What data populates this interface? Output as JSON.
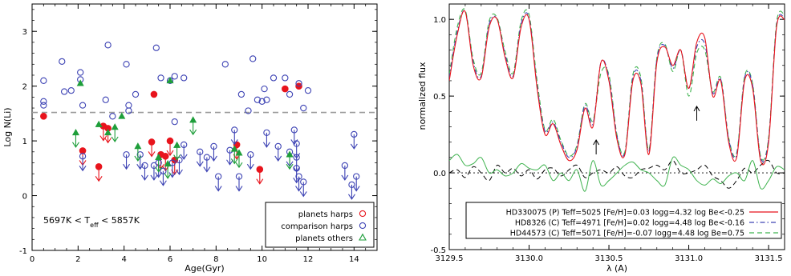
{
  "chart_data": [
    {
      "type": "scatter",
      "xlabel": "Age(Gyr)",
      "ylabel": "Log N(Li)",
      "xlim": [
        0,
        15
      ],
      "ylim": [
        -1,
        3.5
      ],
      "x_ticks": [
        0,
        2,
        4,
        6,
        8,
        10,
        12,
        14
      ],
      "y_ticks": [
        -1,
        0,
        1,
        2,
        3
      ],
      "reference_line_y": 1.52,
      "annotation": {
        "pre": "5697K < T",
        "sub": "eff",
        "post": " < 5857K"
      },
      "legend_position": "bottom-right",
      "colors": {
        "harps_planets": "#e8141c",
        "harps_comparison": "#3d43b4",
        "others_planets": "#1e9e3a",
        "ref_line": "#9a9a9a"
      },
      "series": [
        {
          "name": "planets harps",
          "marker": "filled-circle",
          "detections": [
            {
              "x": 0.5,
              "y": 1.45
            },
            {
              "x": 5.3,
              "y": 1.85
            },
            {
              "x": 11.0,
              "y": 1.95
            },
            {
              "x": 11.6,
              "y": 2.0
            }
          ],
          "upper_limits": [
            {
              "x": 2.2,
              "y": 0.82
            },
            {
              "x": 2.9,
              "y": 0.53
            },
            {
              "x": 3.1,
              "y": 1.27
            },
            {
              "x": 3.3,
              "y": 1.23
            },
            {
              "x": 5.2,
              "y": 0.98
            },
            {
              "x": 5.6,
              "y": 0.75
            },
            {
              "x": 5.8,
              "y": 0.72
            },
            {
              "x": 6.0,
              "y": 1.0
            },
            {
              "x": 6.2,
              "y": 0.65
            },
            {
              "x": 8.9,
              "y": 0.93
            },
            {
              "x": 9.9,
              "y": 0.48
            }
          ]
        },
        {
          "name": "comparison harps",
          "marker": "open-circle",
          "detections": [
            {
              "x": 0.5,
              "y": 2.1
            },
            {
              "x": 0.5,
              "y": 1.72
            },
            {
              "x": 0.5,
              "y": 1.65
            },
            {
              "x": 1.3,
              "y": 2.45
            },
            {
              "x": 1.4,
              "y": 1.9
            },
            {
              "x": 1.7,
              "y": 1.92
            },
            {
              "x": 2.1,
              "y": 2.25
            },
            {
              "x": 2.1,
              "y": 2.12
            },
            {
              "x": 2.2,
              "y": 1.65
            },
            {
              "x": 3.3,
              "y": 2.75
            },
            {
              "x": 3.2,
              "y": 1.75
            },
            {
              "x": 3.5,
              "y": 1.45
            },
            {
              "x": 4.1,
              "y": 2.4
            },
            {
              "x": 4.2,
              "y": 1.65
            },
            {
              "x": 4.2,
              "y": 1.55
            },
            {
              "x": 4.5,
              "y": 1.85
            },
            {
              "x": 5.4,
              "y": 2.7
            },
            {
              "x": 5.6,
              "y": 2.15
            },
            {
              "x": 6.0,
              "y": 2.1
            },
            {
              "x": 6.2,
              "y": 2.18
            },
            {
              "x": 6.2,
              "y": 1.35
            },
            {
              "x": 6.6,
              "y": 2.15
            },
            {
              "x": 8.4,
              "y": 2.4
            },
            {
              "x": 9.1,
              "y": 1.85
            },
            {
              "x": 9.6,
              "y": 2.5
            },
            {
              "x": 9.4,
              "y": 1.55
            },
            {
              "x": 9.8,
              "y": 1.75
            },
            {
              "x": 10.0,
              "y": 1.72
            },
            {
              "x": 10.2,
              "y": 1.75
            },
            {
              "x": 10.1,
              "y": 1.95
            },
            {
              "x": 10.5,
              "y": 2.15
            },
            {
              "x": 11.0,
              "y": 2.15
            },
            {
              "x": 11.2,
              "y": 1.85
            },
            {
              "x": 11.6,
              "y": 2.05
            },
            {
              "x": 11.8,
              "y": 1.6
            },
            {
              "x": 12.0,
              "y": 1.92
            }
          ],
          "upper_limits": [
            {
              "x": 2.2,
              "y": 0.72
            },
            {
              "x": 4.1,
              "y": 0.75
            },
            {
              "x": 4.7,
              "y": 0.75
            },
            {
              "x": 4.9,
              "y": 0.55
            },
            {
              "x": 5.3,
              "y": 0.55
            },
            {
              "x": 5.5,
              "y": 0.6
            },
            {
              "x": 5.7,
              "y": 0.45
            },
            {
              "x": 6.1,
              "y": 0.6
            },
            {
              "x": 6.4,
              "y": 0.65
            },
            {
              "x": 6.6,
              "y": 0.93
            },
            {
              "x": 7.3,
              "y": 0.8
            },
            {
              "x": 7.6,
              "y": 0.7
            },
            {
              "x": 7.9,
              "y": 0.9
            },
            {
              "x": 8.1,
              "y": 0.35
            },
            {
              "x": 8.6,
              "y": 0.83
            },
            {
              "x": 8.8,
              "y": 1.2
            },
            {
              "x": 9.0,
              "y": 0.35
            },
            {
              "x": 9.5,
              "y": 0.75
            },
            {
              "x": 10.2,
              "y": 1.15
            },
            {
              "x": 10.7,
              "y": 0.9
            },
            {
              "x": 11.2,
              "y": 0.8
            },
            {
              "x": 11.4,
              "y": 1.2
            },
            {
              "x": 11.5,
              "y": 0.95
            },
            {
              "x": 11.5,
              "y": 0.7
            },
            {
              "x": 11.5,
              "y": 0.5
            },
            {
              "x": 11.6,
              "y": 0.35
            },
            {
              "x": 11.8,
              "y": 0.25
            },
            {
              "x": 13.6,
              "y": 0.55
            },
            {
              "x": 14.0,
              "y": 1.12
            },
            {
              "x": 13.9,
              "y": 0.2
            },
            {
              "x": 14.1,
              "y": 0.35
            }
          ]
        },
        {
          "name": "planets others",
          "marker": "filled-triangle",
          "detections": [
            {
              "x": 2.1,
              "y": 2.05
            },
            {
              "x": 2.9,
              "y": 1.3
            },
            {
              "x": 3.3,
              "y": 1.15
            },
            {
              "x": 3.9,
              "y": 1.45
            },
            {
              "x": 6.0,
              "y": 2.1
            }
          ],
          "upper_limits": [
            {
              "x": 1.9,
              "y": 1.15
            },
            {
              "x": 3.6,
              "y": 1.25
            },
            {
              "x": 4.6,
              "y": 0.9
            },
            {
              "x": 5.5,
              "y": 0.7
            },
            {
              "x": 5.9,
              "y": 0.58
            },
            {
              "x": 6.3,
              "y": 0.92
            },
            {
              "x": 7.0,
              "y": 1.38
            },
            {
              "x": 8.8,
              "y": 0.85
            },
            {
              "x": 9.0,
              "y": 0.78
            },
            {
              "x": 11.2,
              "y": 0.75
            }
          ]
        }
      ]
    },
    {
      "type": "line",
      "xlabel": "λ (A)",
      "ylabel": "normalized flux",
      "xlim": [
        3129.5,
        3131.6
      ],
      "ylim": [
        -0.5,
        1.1
      ],
      "x_ticks": [
        3129.5,
        3130.0,
        3130.5,
        3131.0,
        3131.5
      ],
      "x_tick_labels": [
        "3129.5",
        "3130.0",
        "3130.5",
        "3131.0",
        "3131.5"
      ],
      "y_ticks": [
        -0.5,
        0.0,
        0.5,
        1.0
      ],
      "y_tick_labels": [
        "-0.5",
        "0.0",
        "0.5",
        "1.0"
      ],
      "arrows": [
        {
          "x": 3130.42,
          "y": 0.12
        },
        {
          "x": 3131.05,
          "y": 0.34
        }
      ],
      "x": [
        3129.5,
        3129.55,
        3129.6,
        3129.65,
        3129.7,
        3129.75,
        3129.8,
        3129.85,
        3129.9,
        3129.95,
        3130.0,
        3130.05,
        3130.1,
        3130.15,
        3130.2,
        3130.25,
        3130.3,
        3130.35,
        3130.4,
        3130.45,
        3130.5,
        3130.55,
        3130.6,
        3130.65,
        3130.7,
        3130.75,
        3130.8,
        3130.85,
        3130.9,
        3130.95,
        3131.0,
        3131.05,
        3131.1,
        3131.15,
        3131.2,
        3131.25,
        3131.3,
        3131.35,
        3131.4,
        3131.45,
        3131.5,
        3131.55,
        3131.6
      ],
      "legend_position": "bottom",
      "colors": {
        "HD330075": "#e8141c",
        "HD8326": "#3d43b4",
        "HD44573": "#3fb34f",
        "residual_black": "#000000"
      },
      "series": [
        {
          "name": "HD330075 (P) Teff=5025 [Fe/H]=0.03 logg=4.32 log Be<-0.25",
          "style": "solid",
          "values": [
            0.6,
            0.9,
            1.05,
            0.7,
            0.62,
            0.95,
            1.0,
            0.75,
            0.62,
            0.95,
            1.0,
            0.55,
            0.25,
            0.32,
            0.18,
            0.08,
            0.15,
            0.42,
            0.3,
            0.72,
            0.6,
            0.22,
            0.12,
            0.6,
            0.58,
            0.12,
            0.72,
            0.82,
            0.7,
            0.8,
            0.55,
            0.85,
            0.88,
            0.5,
            0.6,
            0.2,
            0.1,
            0.6,
            0.55,
            0.08,
            0.2,
            0.95,
            1.0
          ]
        },
        {
          "name": "HD8326 (C) Teff=4971 [Fe/H]=0.02 logg=4.48 log Be<-0.16",
          "style": "dash-dot",
          "values": [
            0.62,
            0.92,
            1.05,
            0.72,
            0.63,
            0.97,
            1.0,
            0.77,
            0.63,
            0.97,
            1.01,
            0.57,
            0.27,
            0.33,
            0.2,
            0.1,
            0.17,
            0.44,
            0.32,
            0.72,
            0.62,
            0.24,
            0.13,
            0.62,
            0.6,
            0.14,
            0.74,
            0.83,
            0.68,
            0.8,
            0.55,
            0.82,
            0.84,
            0.52,
            0.61,
            0.22,
            0.12,
            0.62,
            0.57,
            0.1,
            0.22,
            0.96,
            1.01
          ]
        },
        {
          "name": "HD44573 (C) Teff=5071 [Fe/H]=-0.07 logg=4.48 log Be=0.75",
          "style": "dashed",
          "values": [
            0.64,
            0.95,
            1.06,
            0.74,
            0.65,
            0.99,
            1.01,
            0.79,
            0.65,
            0.99,
            1.03,
            0.6,
            0.28,
            0.35,
            0.21,
            0.11,
            0.18,
            0.45,
            0.34,
            0.65,
            0.64,
            0.25,
            0.14,
            0.64,
            0.62,
            0.15,
            0.75,
            0.84,
            0.66,
            0.8,
            0.5,
            0.78,
            0.8,
            0.53,
            0.62,
            0.23,
            0.13,
            0.63,
            0.58,
            0.11,
            0.23,
            0.98,
            1.03
          ]
        }
      ],
      "residuals": [
        {
          "name": "HD8326 residual",
          "color_key": "residual_black",
          "style": "dashed",
          "values": [
            0.0,
            0.02,
            -0.03,
            0.04,
            0.0,
            -0.05,
            0.05,
            0.0,
            0.03,
            -0.02,
            0.02,
            -0.04,
            0.02,
            0.03,
            -0.02,
            0.02,
            0.05,
            -0.03,
            0.0,
            0.02,
            0.0,
            0.04,
            -0.02,
            -0.03,
            0.02,
            0.03,
            0.05,
            0.02,
            0.08,
            0.0,
            0.0,
            0.02,
            0.05,
            -0.02,
            -0.05,
            -0.1,
            -0.05,
            0.03,
            0.0,
            0.05,
            0.08,
            0.0,
            0.0
          ]
        },
        {
          "name": "HD44573 residual",
          "color_key": "HD44573",
          "style": "solid",
          "values": [
            0.08,
            0.12,
            0.05,
            0.06,
            0.1,
            0.0,
            0.02,
            -0.02,
            0.0,
            0.06,
            0.03,
            0.02,
            0.05,
            -0.05,
            0.0,
            -0.05,
            0.02,
            -0.12,
            0.08,
            -0.08,
            -0.05,
            0.0,
            0.05,
            0.07,
            0.02,
            0.0,
            -0.05,
            -0.08,
            0.1,
            0.05,
            0.02,
            -0.05,
            -0.08,
            -0.04,
            -0.07,
            -0.02,
            0.0,
            -0.05,
            0.08,
            -0.1,
            -0.05,
            0.04,
            0.02
          ]
        }
      ]
    }
  ]
}
